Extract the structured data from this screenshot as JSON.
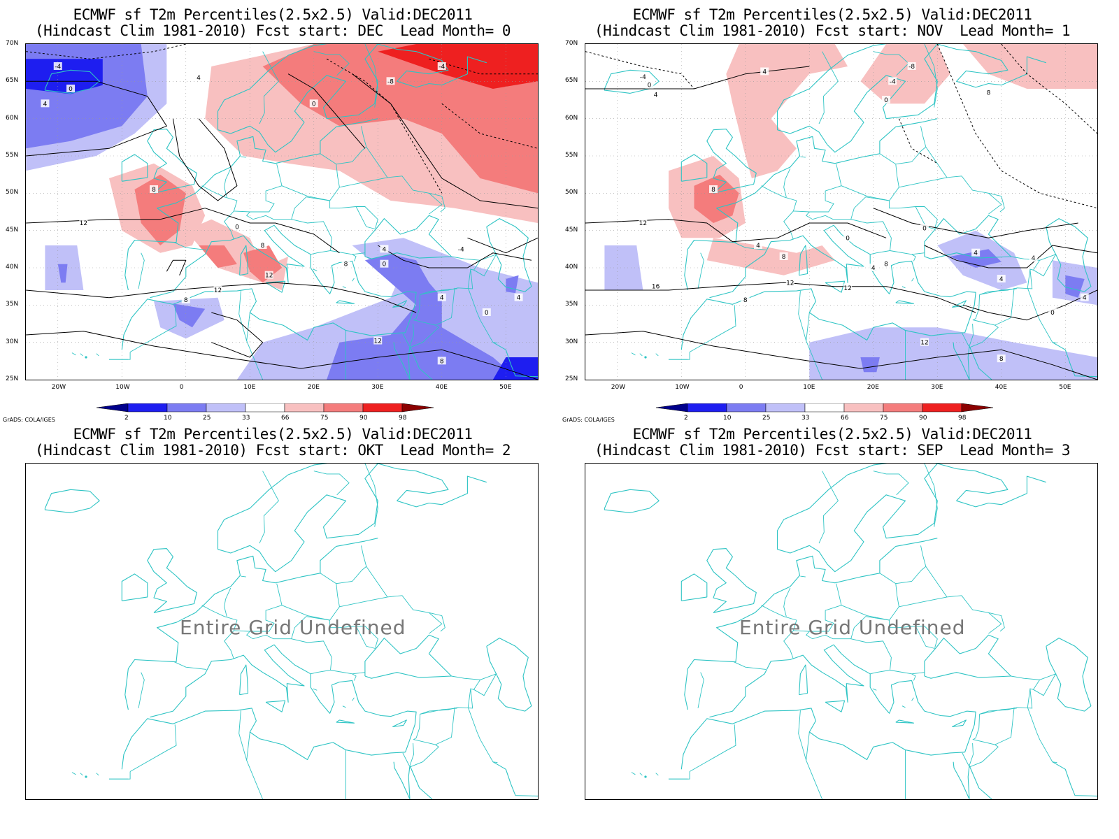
{
  "panels": [
    {
      "title_line1": "ECMWF sf T2m Percentiles(2.5x2.5) Valid:DEC2011",
      "title_line2": "(Hindcast Clim 1981-2010) Fcst start: DEC  Lead Month= 0",
      "has_data": true,
      "shading": "dec",
      "contour_labels": [
        "-4",
        "0",
        "4",
        "-8",
        "8",
        "12"
      ],
      "undefined_text": ""
    },
    {
      "title_line1": "ECMWF sf T2m Percentiles(2.5x2.5) Valid:DEC2011",
      "title_line2": "(Hindcast Clim 1981-2010) Fcst start: NOV  Lead Month= 1",
      "has_data": true,
      "shading": "nov",
      "contour_labels": [
        "-8",
        "-4",
        "0",
        "4",
        "8",
        "12",
        "16"
      ],
      "undefined_text": ""
    },
    {
      "title_line1": "ECMWF sf T2m Percentiles(2.5x2.5) Valid:DEC2011",
      "title_line2": "(Hindcast Clim 1981-2010) Fcst start: OKT  Lead Month= 2",
      "has_data": false,
      "shading": "none",
      "contour_labels": [],
      "undefined_text": "Entire Grid Undefined"
    },
    {
      "title_line1": "ECMWF sf T2m Percentiles(2.5x2.5) Valid:DEC2011",
      "title_line2": "(Hindcast Clim 1981-2010) Fcst start: SEP  Lead Month= 3",
      "has_data": false,
      "shading": "none",
      "contour_labels": [],
      "undefined_text": "Entire Grid Undefined"
    }
  ],
  "lat_labels": [
    "70N",
    "65N",
    "60N",
    "55N",
    "50N",
    "45N",
    "40N",
    "35N",
    "30N",
    "25N"
  ],
  "lon_labels": [
    "20W",
    "10W",
    "0",
    "10E",
    "20E",
    "30E",
    "40E",
    "50E"
  ],
  "colorbar": {
    "labels": [
      "2",
      "10",
      "25",
      "33",
      "66",
      "75",
      "90",
      "98"
    ],
    "colors": [
      "#00008b",
      "#1e1ef0",
      "#7c7cf2",
      "#c0c0f8",
      "#ffffff",
      "#f8c0c0",
      "#f47c7c",
      "#ee2020",
      "#8b0000"
    ]
  },
  "credit": "GrADS: COLA/IGES",
  "colors": {
    "coast": "#2ec4c4",
    "contour": "#000000"
  }
}
